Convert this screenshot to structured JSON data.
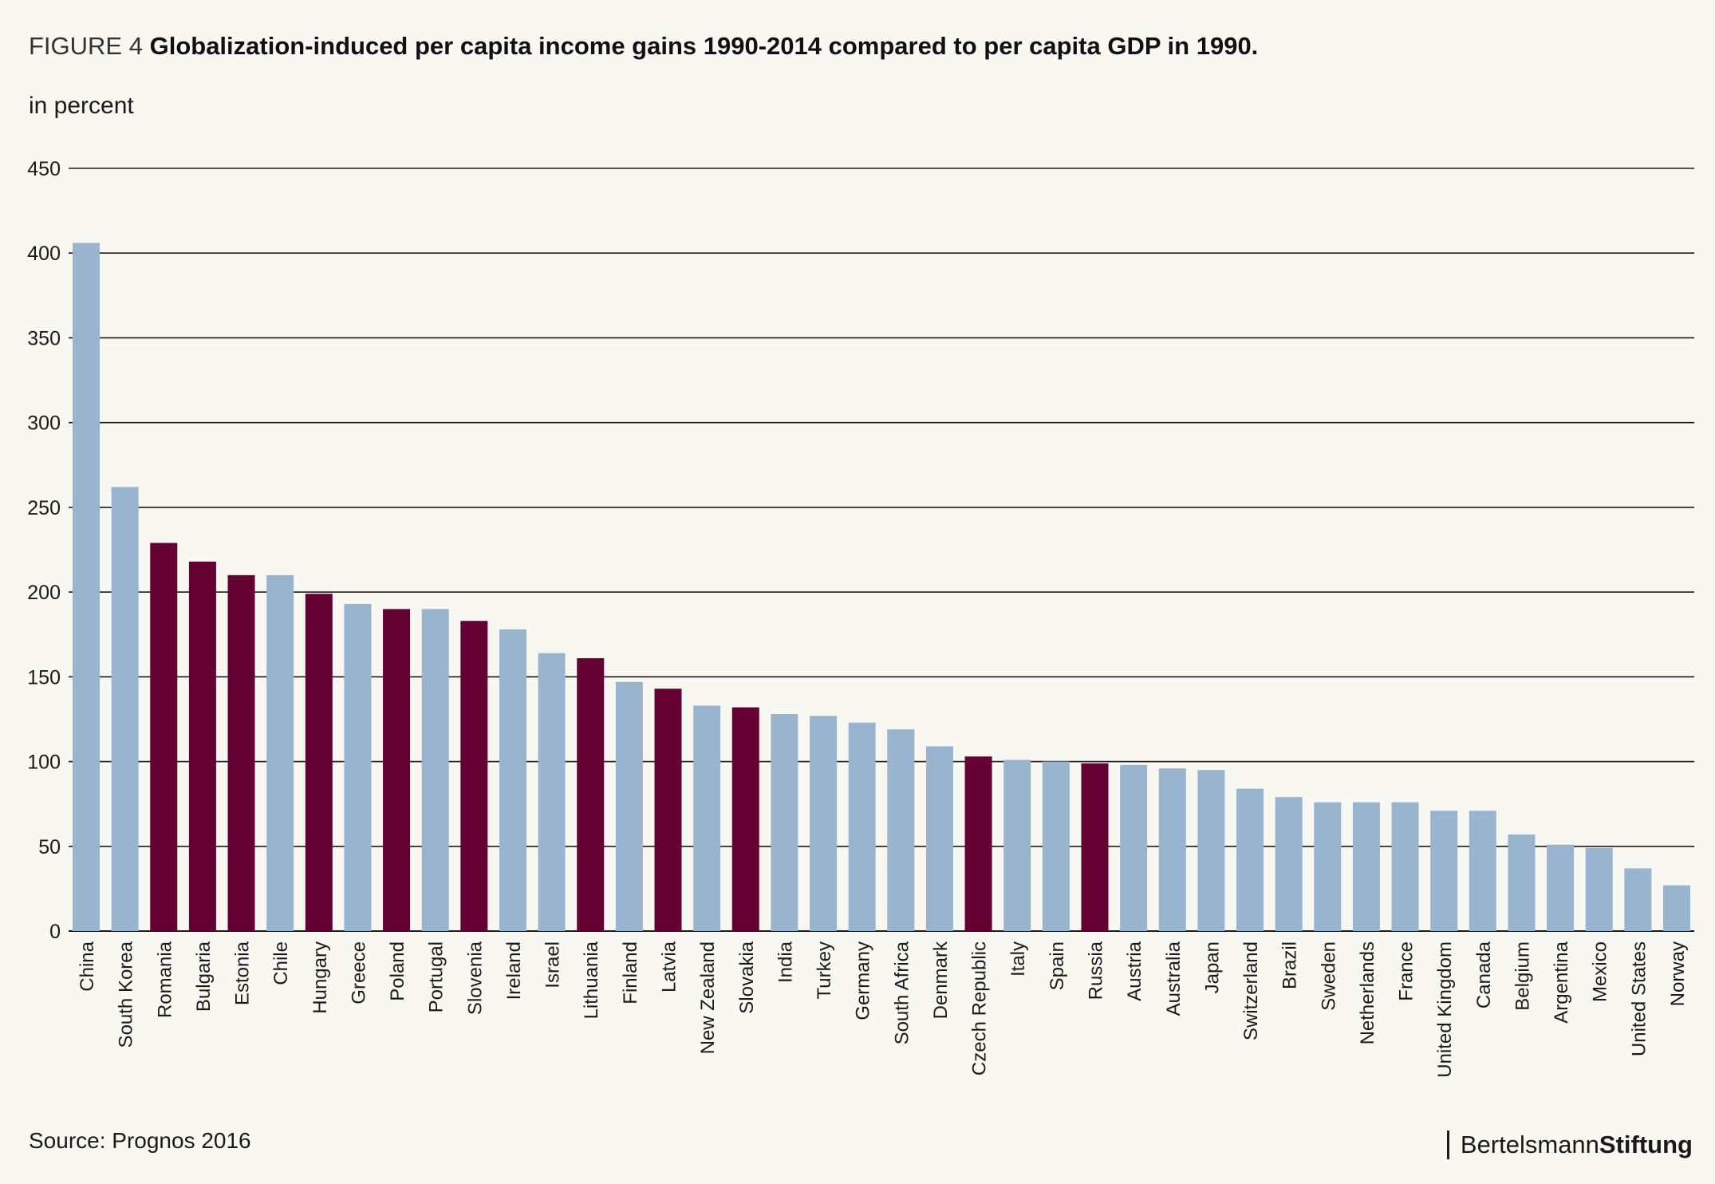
{
  "header": {
    "figure_label": "FIGURE 4",
    "title": "Globalization-induced per capita income gains 1990-2014 compared to per capita GDP in 1990."
  },
  "unit_label": "in percent",
  "source": "Source: Prognos 2016",
  "logo": {
    "part1": "Bertelsmann",
    "part2": "Stiftung"
  },
  "colors": {
    "background": "#f8f7f2",
    "bar_default": "#98b4ce",
    "bar_highlight": "#640032",
    "grid": "#1a1a1a"
  },
  "chart_data": {
    "type": "bar",
    "title": "Globalization-induced per capita income gains 1990-2014 compared to per capita GDP in 1990.",
    "ylabel": "in percent",
    "xlabel": "",
    "ylim": [
      0,
      450
    ],
    "yticks": [
      0,
      50,
      100,
      150,
      200,
      250,
      300,
      350,
      400,
      450
    ],
    "grid": true,
    "categories": [
      "China",
      "South Korea",
      "Romania",
      "Bulgaria",
      "Estonia",
      "Chile",
      "Hungary",
      "Greece",
      "Poland",
      "Portugal",
      "Slovenia",
      "Ireland",
      "Israel",
      "Lithuania",
      "Finland",
      "Latvia",
      "New Zealand",
      "Slovakia",
      "India",
      "Turkey",
      "Germany",
      "South Africa",
      "Denmark",
      "Czech Republic",
      "Italy",
      "Spain",
      "Russia",
      "Austria",
      "Australia",
      "Japan",
      "Switzerland",
      "Brazil",
      "Sweden",
      "Netherlands",
      "France",
      "United Kingdom",
      "Canada",
      "Belgium",
      "Argentina",
      "Mexico",
      "United States",
      "Norway"
    ],
    "values": [
      406,
      262,
      229,
      218,
      210,
      210,
      199,
      193,
      190,
      190,
      183,
      178,
      164,
      161,
      147,
      143,
      133,
      132,
      128,
      127,
      123,
      119,
      109,
      103,
      101,
      100,
      99,
      98,
      96,
      95,
      84,
      79,
      76,
      76,
      76,
      71,
      71,
      57,
      51,
      49,
      37,
      27
    ],
    "highlighted": [
      "Romania",
      "Bulgaria",
      "Estonia",
      "Hungary",
      "Poland",
      "Slovenia",
      "Lithuania",
      "Latvia",
      "Slovakia",
      "Czech Republic",
      "Russia"
    ]
  }
}
